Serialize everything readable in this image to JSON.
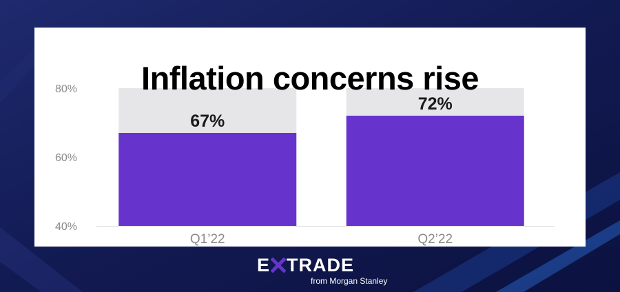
{
  "chart_data": {
    "type": "bar",
    "title": "Inflation concerns rise",
    "categories": [
      "Q1’22",
      "Q2’22"
    ],
    "values": [
      67,
      72
    ],
    "value_labels": [
      "67%",
      "72%"
    ],
    "ylim": [
      40,
      80
    ],
    "y_ticks": [
      80,
      60,
      40
    ],
    "y_tick_labels": [
      "80%",
      "60%",
      "40%"
    ],
    "xlabel": "",
    "ylabel": "",
    "grid": false,
    "colors": {
      "bar": "#6633cc",
      "bar_background": "#e6e6e9"
    }
  },
  "logo": {
    "word_pre": "E",
    "word_post": "TRADE",
    "sub": "from Morgan Stanley"
  }
}
